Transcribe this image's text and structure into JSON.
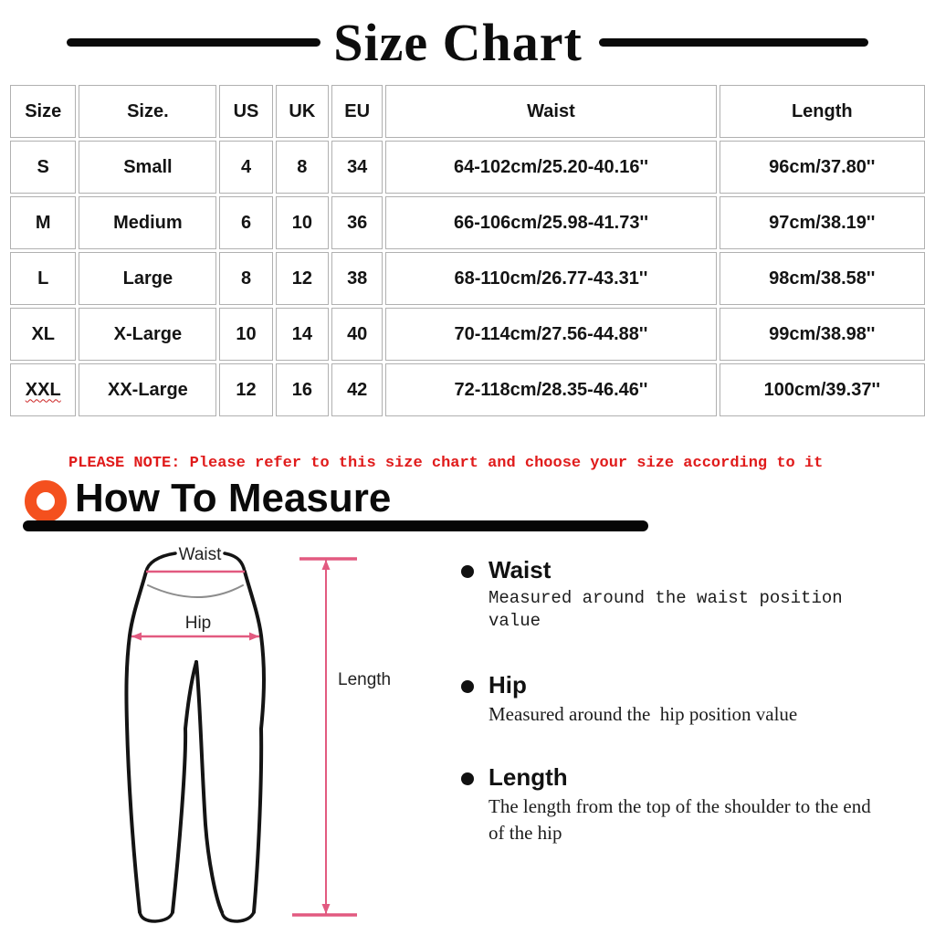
{
  "header": {
    "title": "Size Chart"
  },
  "table": {
    "columns": [
      "Size",
      "Size.",
      "US",
      "UK",
      "EU",
      "Waist",
      "Length"
    ],
    "rows": [
      [
        "S",
        "Small",
        "4",
        "8",
        "34",
        "64-102cm/25.20-40.16''",
        "96cm/37.80''"
      ],
      [
        "M",
        "Medium",
        "6",
        "10",
        "36",
        "66-106cm/25.98-41.73''",
        "97cm/38.19''"
      ],
      [
        "L",
        "Large",
        "8",
        "12",
        "38",
        "68-110cm/26.77-43.31''",
        "98cm/38.58''"
      ],
      [
        "XL",
        "X-Large",
        "10",
        "14",
        "40",
        "70-114cm/27.56-44.88''",
        "99cm/38.98''"
      ],
      [
        "XXL",
        "XX-Large",
        "12",
        "16",
        "42",
        "72-118cm/28.35-46.46''",
        "100cm/39.37''"
      ]
    ]
  },
  "note": {
    "text": "PLEASE NOTE: Please refer to this size chart and choose your size according to it"
  },
  "measure": {
    "heading": "How To Measure",
    "diagram": {
      "waist_label": "Waist",
      "hip_label": "Hip",
      "length_label": "Length"
    },
    "items": [
      {
        "title": "Waist",
        "desc": "Measured around the waist position value"
      },
      {
        "title": "Hip",
        "desc": "Measured around the  hip position value"
      },
      {
        "title": "Length",
        "desc": "The length from the top of the shoulder to the end of the hip"
      }
    ]
  },
  "colors": {
    "note_red": "#e01b1b",
    "accent_orange": "#f4501e",
    "measure_pink": "#e25a80",
    "table_border": "#b0b0b0",
    "ink_black": "#0a0a0a"
  }
}
